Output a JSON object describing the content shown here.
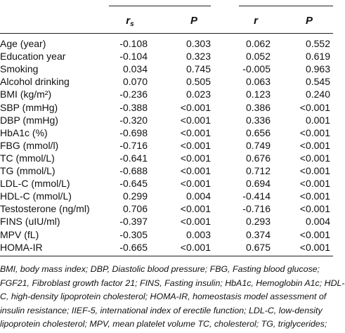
{
  "table": {
    "header": [
      {
        "text": "r",
        "sub": "s"
      },
      {
        "text": "P"
      },
      {
        "text": "r"
      },
      {
        "text": "P"
      }
    ],
    "rows": [
      [
        "Age (year)",
        "-0.108",
        "0.303",
        "0.062",
        "0.552"
      ],
      [
        "Education year",
        "-0.104",
        "0.323",
        "0.052",
        "0.619"
      ],
      [
        "Smoking",
        "0.034",
        "0.745",
        "-0.005",
        "0.963"
      ],
      [
        "Alcohol drinking",
        "0.070",
        "0.505",
        "0.063",
        "0.545"
      ],
      [
        "BMI (kg/m²)",
        "-0.236",
        "0.023",
        "0.123",
        "0.240"
      ],
      [
        "SBP (mmHg)",
        "-0.388",
        "<0.001",
        "0.386",
        "<0.001"
      ],
      [
        "DBP (mmHg)",
        "-0.320",
        "<0.001",
        "0.336",
        "0.001"
      ],
      [
        "HbA1c (%)",
        "-0.698",
        "<0.001",
        "0.656",
        "<0.001"
      ],
      [
        "FBG (mmol/l)",
        "-0.716",
        "<0.001",
        "0.749",
        "<0.001"
      ],
      [
        "TC (mmol/L)",
        "-0.641",
        "<0.001",
        "0.676",
        "<0.001"
      ],
      [
        "TG (mmol/L)",
        "-0.688",
        "<0.001",
        "0.712",
        "<0.001"
      ],
      [
        "LDL-C (mmol/L)",
        "-0.645",
        "<0.001",
        "0.694",
        "<0.001"
      ],
      [
        "HDL-C (mmol/L)",
        "0.299",
        "0.004",
        "-0.414",
        "<0.001"
      ],
      [
        "Testosterone (ng/ml)",
        "0.706",
        "<0.001",
        "-0.716",
        "<0.001"
      ],
      [
        "FINS (uIU/ml)",
        "-0.397",
        "<0.001",
        "0.293",
        "0.004"
      ],
      [
        "MPV (fL)",
        "-0.305",
        "0.003",
        "0.374",
        "<0.001"
      ],
      [
        "HOMA-IR",
        "-0.665",
        "<0.001",
        "0.675",
        "<0.001"
      ]
    ],
    "footnote": [
      "BMI, body mass index; DBP, Diastolic blood pressure; FBG, Fasting blood glucose;",
      "FGF21, Fibroblast growth factor 21; FINS, Fasting insulin; HbA1c, Hemoglobin A1c; HDL-",
      "C, high-density lipoprotein cholesterol; HOMA-IR, homeostasis model assessment of",
      "insulin resistance; IIEF-5, international index of erectile function; LDL-C, low-density",
      "lipoprotein cholesterol; MPV, mean platelet volume TC, cholesterol; TG, triglycerides;"
    ]
  }
}
